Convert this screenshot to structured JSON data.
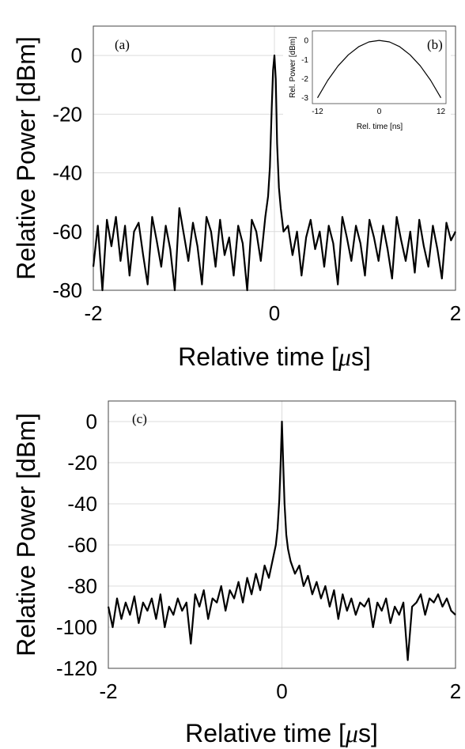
{
  "chart_data": [
    {
      "id": "a",
      "type": "line",
      "panel_label": "(a)",
      "xlabel": "Relative time [μs]",
      "xlabel_prefix": "Relative time [",
      "xlabel_mu": "μ",
      "xlabel_suffix": "s]",
      "ylabel": "Relative Power [dBm]",
      "xlim": [
        -2,
        2
      ],
      "ylim": [
        -80,
        10
      ],
      "xticks": [
        "-2",
        "0",
        "2"
      ],
      "xtick_values": [
        -2,
        0,
        2
      ],
      "yticks": [
        "0",
        "-20",
        "-40",
        "-60",
        "-80"
      ],
      "ytick_values": [
        0,
        -20,
        -40,
        -60,
        -80
      ],
      "grid": true,
      "series": [
        {
          "line_color": "#000000",
          "x": [
            -2.0,
            -1.95,
            -1.9,
            -1.85,
            -1.8,
            -1.75,
            -1.7,
            -1.65,
            -1.6,
            -1.55,
            -1.5,
            -1.45,
            -1.4,
            -1.35,
            -1.3,
            -1.25,
            -1.2,
            -1.15,
            -1.1,
            -1.05,
            -1.0,
            -0.95,
            -0.9,
            -0.85,
            -0.8,
            -0.75,
            -0.7,
            -0.65,
            -0.6,
            -0.55,
            -0.5,
            -0.45,
            -0.4,
            -0.35,
            -0.3,
            -0.25,
            -0.2,
            -0.15,
            -0.1,
            -0.07,
            -0.05,
            -0.03,
            -0.015,
            0.0,
            0.015,
            0.03,
            0.05,
            0.07,
            0.1,
            0.15,
            0.2,
            0.25,
            0.3,
            0.35,
            0.4,
            0.45,
            0.5,
            0.55,
            0.6,
            0.65,
            0.7,
            0.75,
            0.8,
            0.85,
            0.9,
            0.95,
            1.0,
            1.05,
            1.1,
            1.15,
            1.2,
            1.25,
            1.3,
            1.35,
            1.4,
            1.45,
            1.5,
            1.55,
            1.6,
            1.65,
            1.7,
            1.75,
            1.8,
            1.85,
            1.9,
            1.95,
            2.0
          ],
          "y": [
            -72,
            -58,
            -80,
            -56,
            -65,
            -55,
            -70,
            -58,
            -75,
            -60,
            -57,
            -68,
            -78,
            -55,
            -63,
            -72,
            -58,
            -66,
            -80,
            -52,
            -61,
            -70,
            -57,
            -65,
            -78,
            -55,
            -60,
            -72,
            -56,
            -68,
            -62,
            -75,
            -58,
            -64,
            -80,
            -56,
            -60,
            -70,
            -55,
            -48,
            -38,
            -18,
            -5,
            0,
            -8,
            -30,
            -45,
            -52,
            -60,
            -58,
            -68,
            -60,
            -75,
            -62,
            -56,
            -66,
            -60,
            -72,
            -58,
            -64,
            -78,
            -55,
            -62,
            -70,
            -58,
            -64,
            -75,
            -56,
            -62,
            -70,
            -58,
            -66,
            -76,
            -55,
            -63,
            -70,
            -60,
            -74,
            -56,
            -65,
            -72,
            -58,
            -66,
            -76,
            -57,
            -63,
            -60
          ]
        }
      ],
      "inset": {
        "type": "line",
        "panel_label": "(b)",
        "xlabel": "Rel. time [ns]",
        "ylabel": "Rel. Power [dBm]",
        "xlim": [
          -13,
          13
        ],
        "ylim": [
          -3.3,
          0.5
        ],
        "xticks": [
          "-12",
          "0",
          "12"
        ],
        "xtick_values": [
          -12,
          0,
          12
        ],
        "yticks": [
          "0",
          "-1",
          "-2",
          "-3"
        ],
        "ytick_values": [
          0,
          -1,
          -2,
          -3
        ],
        "series": [
          {
            "x": [
              -12,
              -10,
              -8,
              -6,
              -4,
              -2,
              0,
              2,
              4,
              6,
              8,
              10,
              12
            ],
            "y": [
              -3.0,
              -2.08,
              -1.33,
              -0.75,
              -0.33,
              -0.08,
              0.0,
              -0.08,
              -0.33,
              -0.75,
              -1.33,
              -2.08,
              -3.0
            ]
          }
        ]
      }
    },
    {
      "id": "c",
      "type": "line",
      "panel_label": "(c)",
      "xlabel": "Relative time [μs]",
      "xlabel_prefix": "Relative time [",
      "xlabel_mu": "μ",
      "xlabel_suffix": "s]",
      "ylabel": "Relative Power [dBm]",
      "xlim": [
        -2,
        2
      ],
      "ylim": [
        -120,
        10
      ],
      "xticks": [
        "-2",
        "0",
        "2"
      ],
      "xtick_values": [
        -2,
        0,
        2
      ],
      "yticks": [
        "0",
        "-20",
        "-40",
        "-60",
        "-80",
        "-100",
        "-120"
      ],
      "ytick_values": [
        0,
        -20,
        -40,
        -60,
        -80,
        -100,
        -120
      ],
      "grid": true,
      "series": [
        {
          "line_color": "#000000",
          "x": [
            -2.0,
            -1.95,
            -1.9,
            -1.85,
            -1.8,
            -1.75,
            -1.7,
            -1.65,
            -1.6,
            -1.55,
            -1.5,
            -1.45,
            -1.4,
            -1.35,
            -1.3,
            -1.25,
            -1.2,
            -1.15,
            -1.1,
            -1.05,
            -1.0,
            -0.95,
            -0.9,
            -0.85,
            -0.8,
            -0.75,
            -0.7,
            -0.65,
            -0.6,
            -0.55,
            -0.5,
            -0.45,
            -0.4,
            -0.35,
            -0.3,
            -0.25,
            -0.2,
            -0.15,
            -0.1,
            -0.07,
            -0.05,
            -0.03,
            -0.015,
            0.0,
            0.015,
            0.03,
            0.05,
            0.07,
            0.1,
            0.15,
            0.2,
            0.25,
            0.3,
            0.35,
            0.4,
            0.45,
            0.5,
            0.55,
            0.6,
            0.65,
            0.7,
            0.75,
            0.8,
            0.85,
            0.9,
            0.95,
            1.0,
            1.05,
            1.1,
            1.15,
            1.2,
            1.25,
            1.3,
            1.35,
            1.4,
            1.45,
            1.5,
            1.55,
            1.6,
            1.65,
            1.7,
            1.75,
            1.8,
            1.85,
            1.9,
            1.95,
            2.0
          ],
          "y": [
            -90,
            -100,
            -86,
            -96,
            -88,
            -94,
            -85,
            -98,
            -88,
            -92,
            -86,
            -96,
            -84,
            -100,
            -90,
            -94,
            -86,
            -92,
            -88,
            -108,
            -84,
            -90,
            -82,
            -96,
            -86,
            -88,
            -80,
            -92,
            -82,
            -86,
            -78,
            -88,
            -76,
            -84,
            -74,
            -82,
            -70,
            -76,
            -66,
            -60,
            -52,
            -38,
            -20,
            0,
            -20,
            -40,
            -55,
            -62,
            -68,
            -74,
            -70,
            -80,
            -75,
            -84,
            -78,
            -86,
            -80,
            -90,
            -82,
            -96,
            -84,
            -92,
            -86,
            -94,
            -88,
            -90,
            -86,
            -100,
            -88,
            -92,
            -86,
            -98,
            -90,
            -94,
            -88,
            -116,
            -90,
            -88,
            -84,
            -94,
            -86,
            -88,
            -84,
            -90,
            -86,
            -92,
            -94
          ]
        }
      ]
    }
  ]
}
